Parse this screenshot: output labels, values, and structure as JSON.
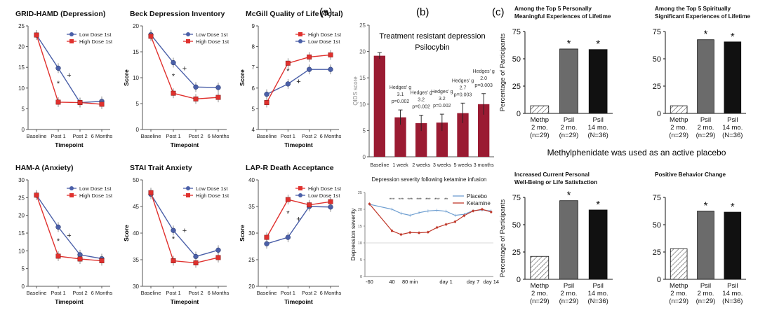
{
  "panel_labels": [
    "(a)",
    "(b)",
    "(c)"
  ],
  "top_caption": "Treatment resistant depression",
  "top_caption2": "Psilocybin",
  "mid_caption": "Methylphenidate was used as an active placebo",
  "colors": {
    "blue": "#4a5fa8",
    "red": "#e0312e",
    "crimson": "#9a1b32",
    "lightblue": "#6f9fd1",
    "darkred": "#c0392b",
    "gray": "#6b6b6b",
    "black": "#111111"
  },
  "chart_data": [
    {
      "id": "a1",
      "type": "line",
      "title": "GRID-HAMD (Depression)",
      "categories": [
        "Baseline",
        "Post 1",
        "Post 2",
        "6 Months"
      ],
      "xlabel": "Timepoint",
      "ylabel": "",
      "ylim": [
        0,
        25
      ],
      "yticks": [
        0,
        5,
        10,
        15,
        20,
        25
      ],
      "series": [
        {
          "name": "Low Dose 1st",
          "color": "blue",
          "values": [
            22.8,
            14.8,
            6.5,
            6.8
          ]
        },
        {
          "name": "High Dose 1st",
          "color": "red",
          "values": [
            22.8,
            6.6,
            6.5,
            6.1
          ]
        }
      ],
      "legend_order": [
        0,
        1
      ],
      "marks": [
        {
          "text": "*",
          "i": 1,
          "v": 10.5
        },
        {
          "text": "+",
          "i": 1.5,
          "v": 12.5
        }
      ]
    },
    {
      "id": "a2",
      "type": "line",
      "title": "Beck Depression Inventory",
      "categories": [
        "Baseline",
        "Post 1",
        "Post 2",
        "6 Months"
      ],
      "xlabel": "Timepoint",
      "ylabel": "Score",
      "ylim": [
        0,
        20
      ],
      "yticks": [
        0,
        5,
        10,
        15,
        20
      ],
      "series": [
        {
          "name": "Low Dose 1st",
          "color": "blue",
          "values": [
            18.3,
            12.9,
            8.2,
            8.1
          ]
        },
        {
          "name": "High Dose 1st",
          "color": "red",
          "values": [
            18.0,
            7.0,
            5.9,
            6.2
          ]
        }
      ],
      "legend_order": [
        0,
        1
      ],
      "marks": [
        {
          "text": "*",
          "i": 1,
          "v": 9.8
        },
        {
          "text": "+",
          "i": 1.5,
          "v": 11.3
        }
      ]
    },
    {
      "id": "a3",
      "type": "line",
      "title": "McGill Quality of Life (Total)",
      "categories": [
        "Baseline",
        "Post 1",
        "Post 2",
        "6 Months"
      ],
      "xlabel": "Timepoint",
      "ylabel": "Score",
      "ylim": [
        4,
        9
      ],
      "yticks": [
        4,
        5,
        6,
        7,
        8,
        9
      ],
      "series": [
        {
          "name": "Low Dose 1st",
          "color": "blue",
          "values": [
            5.7,
            6.2,
            6.9,
            6.9
          ]
        },
        {
          "name": "High Dose 1st",
          "color": "red",
          "values": [
            5.3,
            7.2,
            7.5,
            7.6
          ]
        }
      ],
      "legend_order": [
        1,
        0
      ],
      "marks": [
        {
          "text": "*",
          "i": 1,
          "v": 6.7
        },
        {
          "text": "+",
          "i": 1.5,
          "v": 6.2
        }
      ]
    },
    {
      "id": "a4",
      "type": "line",
      "title": "HAM-A (Anxiety)",
      "categories": [
        "Baseline",
        "Post 1",
        "Post 2",
        "6 Months"
      ],
      "xlabel": "Timepoint",
      "ylabel": "",
      "ylim": [
        0,
        30
      ],
      "yticks": [
        0,
        5,
        10,
        15,
        20,
        25,
        30
      ],
      "series": [
        {
          "name": "Low Dose 1st",
          "color": "blue",
          "values": [
            25.7,
            16.7,
            8.9,
            7.8
          ]
        },
        {
          "name": "High Dose 1st",
          "color": "red",
          "values": [
            25.7,
            8.5,
            7.7,
            7.2
          ]
        }
      ],
      "legend_order": [
        0,
        1
      ],
      "marks": [
        {
          "text": "*",
          "i": 1,
          "v": 12.0
        },
        {
          "text": "+",
          "i": 1.5,
          "v": 13.6
        }
      ]
    },
    {
      "id": "a5",
      "type": "line",
      "title": "STAI Trait Anxiety",
      "categories": [
        "Baseline",
        "Post 1",
        "Post 2",
        "6 Months"
      ],
      "xlabel": "Timepoint",
      "ylabel": "Score",
      "ylim": [
        30,
        50
      ],
      "yticks": [
        30,
        35,
        40,
        45,
        50
      ],
      "series": [
        {
          "name": "Low Dose 1st",
          "color": "blue",
          "values": [
            47.3,
            40.5,
            35.6,
            36.8
          ]
        },
        {
          "name": "High Dose 1st",
          "color": "red",
          "values": [
            47.6,
            34.8,
            34.4,
            35.4
          ]
        }
      ],
      "legend_order": [
        0,
        1
      ],
      "marks": [
        {
          "text": "*",
          "i": 1,
          "v": 38.4
        },
        {
          "text": "+",
          "i": 1.5,
          "v": 40.0
        }
      ]
    },
    {
      "id": "a6",
      "type": "line",
      "title": "LAP-R Death Acceptance",
      "categories": [
        "Baseline",
        "Post 1",
        "Post 2",
        "6 Months"
      ],
      "xlabel": "Timepoint",
      "ylabel": "Score",
      "ylim": [
        20,
        40
      ],
      "yticks": [
        20,
        25,
        30,
        35,
        40
      ],
      "series": [
        {
          "name": "Low Dose 1st",
          "color": "blue",
          "values": [
            28.0,
            29.2,
            35.0,
            34.9
          ]
        },
        {
          "name": "High Dose 1st",
          "color": "red",
          "values": [
            29.2,
            36.3,
            35.3,
            35.9
          ]
        }
      ],
      "legend_order": [
        1,
        0
      ],
      "marks": [
        {
          "text": "*",
          "i": 1,
          "v": 33.2
        },
        {
          "text": "+",
          "i": 1.5,
          "v": 32.2
        }
      ]
    },
    {
      "id": "b1",
      "type": "bar",
      "title": "",
      "categories": [
        "Baseline",
        "1 week",
        "2 weeks",
        "3 weeks",
        "5 weeks",
        "3 months"
      ],
      "values": [
        19.2,
        7.5,
        6.4,
        6.5,
        8.3,
        10.0
      ],
      "errors": [
        0.6,
        1.4,
        1.5,
        1.6,
        1.9,
        2.0
      ],
      "annotations": [
        "",
        "Hedges' g\n3.1\np=0.002",
        "Hedges' g\n3.2\np=0.002",
        "Hedges' g\n3.2\np=0.002",
        "Hedges' g\n2.7\np=0.003",
        "Hedges' g\n2.0\np=0.003"
      ],
      "ylabel": "QIDS score",
      "ylim": [
        0,
        25
      ],
      "yticks": [
        0,
        5,
        10,
        15,
        20,
        25
      ]
    },
    {
      "id": "b2",
      "type": "line",
      "title": "Depression severity following ketamine infusion",
      "x": [
        -60,
        40,
        80,
        120,
        160,
        200,
        240,
        280,
        320,
        360,
        400,
        440,
        480
      ],
      "xticks": [
        {
          "x": -60,
          "label": "-60"
        },
        {
          "x": 40,
          "label": "40"
        },
        {
          "x": 120,
          "label": "80 min"
        },
        {
          "x": 280,
          "label": "day 1"
        },
        {
          "x": 400,
          "label": "day 7"
        },
        {
          "x": 480,
          "label": "day 14"
        }
      ],
      "xlim": [
        -80,
        490
      ],
      "ylabel": "Depression severity",
      "ylim": [
        0,
        25
      ],
      "yticks": [
        0,
        5,
        10,
        15,
        20,
        25
      ],
      "series": [
        {
          "name": "Placebo",
          "color": "lightblue",
          "values": [
            21.5,
            20.0,
            18.8,
            18.2,
            19.0,
            19.5,
            19.7,
            19.4,
            18.2,
            18.5,
            19.6,
            19.8,
            19.5
          ]
        },
        {
          "name": "Ketamine",
          "color": "darkred",
          "values": [
            21.6,
            13.6,
            12.5,
            13.1,
            13.0,
            13.2,
            14.6,
            15.5,
            16.3,
            18.1,
            19.5,
            20.0,
            19.2
          ]
        }
      ],
      "sig_marks": [
        "***",
        "***",
        "***",
        "***",
        "***",
        "***",
        "**"
      ]
    },
    {
      "id": "c1",
      "type": "bar",
      "title": "Among the Top 5 Personally\nMeaningful Experiences of Lifetime",
      "categories": [
        "Methp\n2 mo.\n(n=29)",
        "Psil\n2 mo.\n(n=29)",
        "Psil\n14 mo.\n(N=36)"
      ],
      "values": [
        7,
        59,
        58.5
      ],
      "fills": [
        "hatch",
        "gray",
        "black"
      ],
      "stars": [
        false,
        true,
        true
      ],
      "ylabel": "Percentage of Participants",
      "ylim": [
        0,
        75
      ],
      "yticks": [
        0,
        25,
        50,
        75
      ]
    },
    {
      "id": "c2",
      "type": "bar",
      "title": "Among the Top 5 Spiritually\nSignificant Experiences of Lifetime",
      "categories": [
        "Methp\n2 mo.\n(n=29)",
        "Psil\n2 mo.\n(n=29)",
        "Psil\n14 mo.\n(N=36)"
      ],
      "values": [
        7,
        67.5,
        65.5
      ],
      "fills": [
        "hatch",
        "gray",
        "black"
      ],
      "stars": [
        false,
        true,
        true
      ],
      "ylabel": "",
      "ylim": [
        0,
        75
      ],
      "yticks": [
        0,
        25,
        50,
        75
      ]
    },
    {
      "id": "c3",
      "type": "bar",
      "title": "Increased Current Personal\nWell-Being or Life Satisfaction",
      "categories": [
        "Methp\n2 mo.\n(n=29)",
        "Psil\n2 mo.\n(n=29)",
        "Psil\n14 mo.\n(N=36)"
      ],
      "values": [
        21,
        72,
        63.5
      ],
      "fills": [
        "hatch",
        "gray",
        "black"
      ],
      "stars": [
        false,
        true,
        true
      ],
      "ylabel": "Percentage of Participants",
      "ylim": [
        0,
        75
      ],
      "yticks": [
        0,
        25,
        50,
        75
      ]
    },
    {
      "id": "c4",
      "type": "bar",
      "title": "Positive Behavior Change",
      "categories": [
        "Methp\n2 mo.\n(n=29)",
        "Psil\n2 mo.\n(n=29)",
        "Psil\n14 mo.\n(N=36)"
      ],
      "values": [
        28,
        62.5,
        61.5
      ],
      "fills": [
        "hatch",
        "gray",
        "black"
      ],
      "stars": [
        false,
        true,
        true
      ],
      "ylabel": "",
      "ylim": [
        0,
        75
      ],
      "yticks": [
        0,
        25,
        50,
        75
      ]
    }
  ]
}
